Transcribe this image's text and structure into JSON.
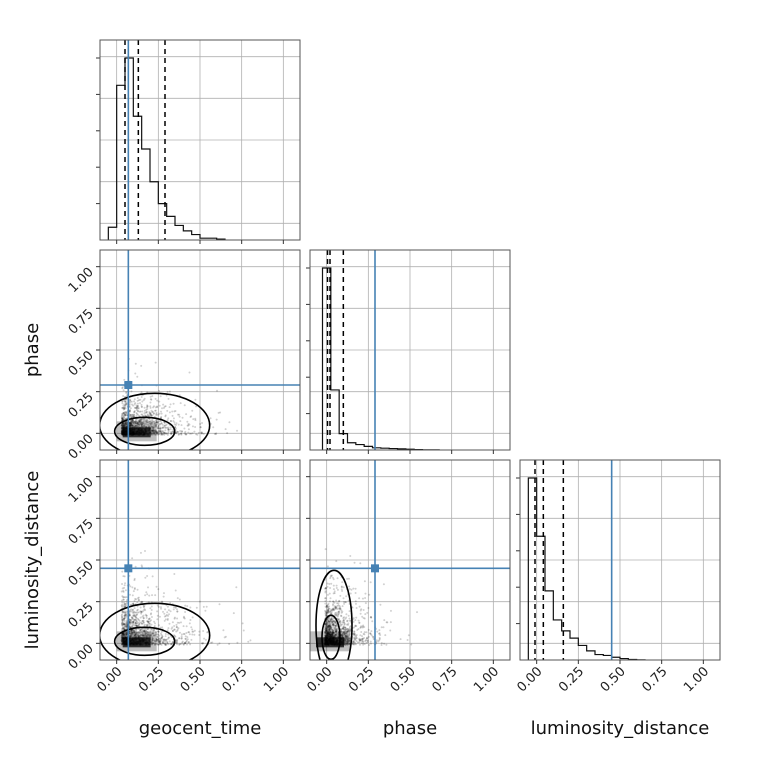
{
  "chart_data": {
    "type": "corner",
    "parameters": [
      {
        "key": "geocent_time",
        "label": "geocent_time",
        "injection": 0.07,
        "quantiles": [
          0.05,
          0.13,
          0.29
        ]
      },
      {
        "key": "phase",
        "label": "phase",
        "injection": 0.29,
        "quantiles": [
          0.005,
          0.02,
          0.1
        ]
      },
      {
        "key": "luminosity_distance",
        "label": "luminosity_distance",
        "injection": 0.45,
        "quantiles": [
          -0.01,
          0.04,
          0.16
        ]
      }
    ],
    "xlim": [
      -0.1,
      1.1
    ],
    "ylim": [
      -0.1,
      1.1
    ],
    "ticks": [
      "0.00",
      "0.25",
      "0.50",
      "0.75",
      "1.00"
    ],
    "tick_values": [
      0,
      0.25,
      0.5,
      0.75,
      1.0
    ],
    "histograms": {
      "geocent_time": {
        "bin_width": 0.05,
        "start": -0.05,
        "counts": [
          0.07,
          0.85,
          1.0,
          0.68,
          0.5,
          0.32,
          0.2,
          0.13,
          0.08,
          0.05,
          0.03,
          0.01,
          0.01,
          0.005
        ]
      },
      "phase": {
        "bin_width": 0.05,
        "start": -0.025,
        "counts": [
          1.0,
          0.33,
          0.09,
          0.04,
          0.03,
          0.02,
          0.012,
          0.01,
          0.008,
          0.006,
          0.004,
          0.002,
          0.001,
          0.001
        ]
      },
      "luminosity_distance": {
        "bin_width": 0.05,
        "start": -0.05,
        "counts": [
          1.0,
          0.68,
          0.38,
          0.22,
          0.16,
          0.12,
          0.08,
          0.05,
          0.03,
          0.025,
          0.015,
          0.008,
          0.003,
          0.001
        ]
      }
    },
    "grid": true,
    "injection_color": "#4682b4",
    "quantile_line_style": "dashed"
  }
}
